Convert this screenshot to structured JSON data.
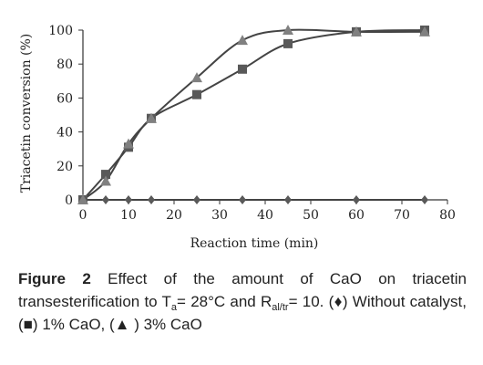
{
  "chart_data": {
    "type": "scatter",
    "xlabel": "Reaction time (min)",
    "ylabel": "Triacetin conversion (%)",
    "xlim": [
      0,
      80
    ],
    "ylim": [
      0,
      100
    ],
    "x_ticks": [
      "0",
      "10",
      "20",
      "30",
      "40",
      "50",
      "60",
      "70",
      "80"
    ],
    "y_ticks": [
      "0",
      "20",
      "40",
      "60",
      "80",
      "100"
    ],
    "grid": false,
    "legend": "none",
    "series": [
      {
        "marker": "diamond",
        "color": "#595959",
        "x": [
          0,
          5,
          10,
          15,
          25,
          35,
          45,
          60,
          75
        ],
        "y": [
          0,
          0,
          0,
          0,
          0,
          0,
          0,
          0,
          0
        ],
        "fit_line": "straight"
      },
      {
        "marker": "square",
        "color": "#595959",
        "x": [
          0,
          5,
          10,
          15,
          25,
          35,
          45,
          60,
          75
        ],
        "y": [
          0,
          15,
          31,
          48,
          62,
          77,
          92,
          99,
          100
        ],
        "fit_line": "smooth"
      },
      {
        "marker": "triangle",
        "color": "#808080",
        "x": [
          0,
          5,
          10,
          15,
          25,
          35,
          45,
          60,
          75
        ],
        "y": [
          0,
          11,
          33,
          48,
          72,
          94,
          100,
          99,
          99
        ],
        "fit_line": "smooth"
      }
    ]
  },
  "caption": {
    "label": "Figure 2",
    "text_before_a": "Effect of the amount of CaO on triacetin transesterification to T",
    "sub_a": "a",
    "text_mid": "= 28°C and R",
    "sub_altr": "al/tr",
    "text_after": "= 10. (♦) Without catalyst, (■) 1% CaO, (▲ ) 3% CaO"
  }
}
